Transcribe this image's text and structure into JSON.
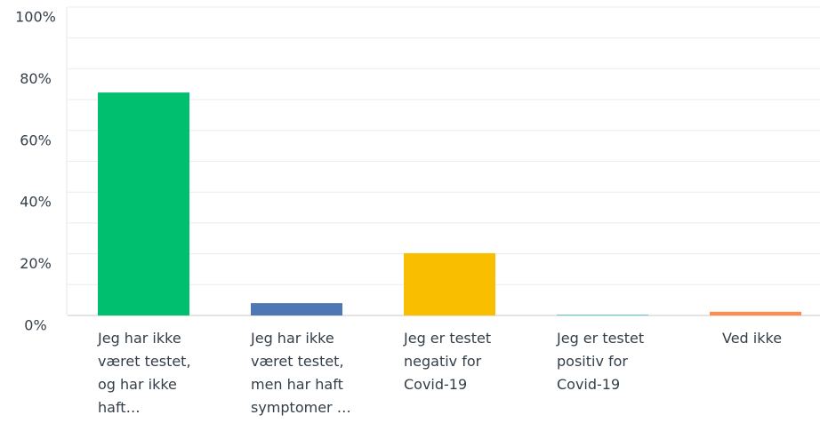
{
  "chart_data": {
    "type": "bar",
    "categories": [
      "Jeg har ikke været testet, og har ikke haft…",
      "Jeg har ikke været testet, men har haft symptomer …",
      "Jeg er testet negativ for Covid-19",
      "Jeg er testet positiv for Covid-19",
      "Ved ikke"
    ],
    "values": [
      72.3,
      4.0,
      20.2,
      0.3,
      1.2
    ],
    "colors": [
      "#00bf6f",
      "#4e78b4",
      "#f9be00",
      "#6bc8cd",
      "#ff8b4f"
    ],
    "ylim": [
      0,
      100
    ],
    "yticks": [
      {
        "value": 0,
        "label": "0%"
      },
      {
        "value": 20,
        "label": "20%"
      },
      {
        "value": 40,
        "label": "40%"
      },
      {
        "value": 60,
        "label": "60%"
      },
      {
        "value": 80,
        "label": "80%"
      },
      {
        "value": 100,
        "label": "100%"
      }
    ],
    "minor_yticks": [
      10,
      30,
      50,
      70,
      90
    ],
    "grid": true
  }
}
